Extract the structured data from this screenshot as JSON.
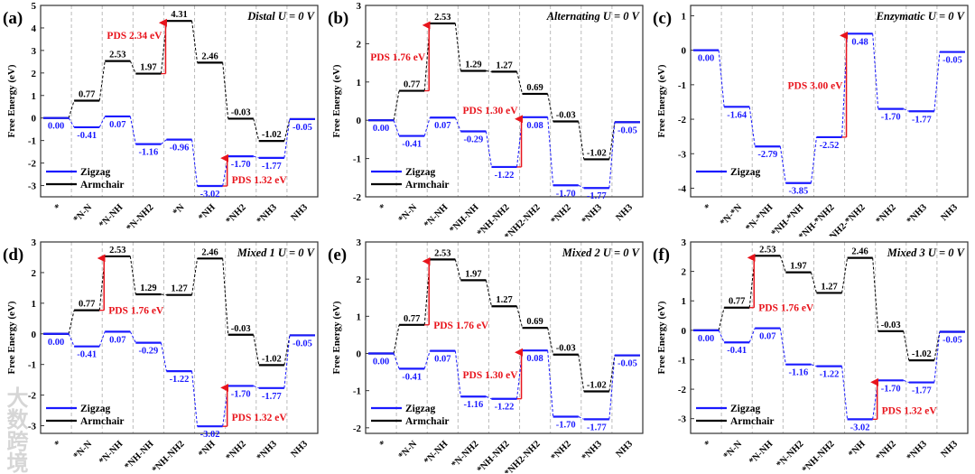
{
  "colors": {
    "zigzag": "#1a1aff",
    "armchair": "#000000",
    "pds": "#e8141c",
    "grid": "#bbbbbb"
  },
  "watermark": "大数跨境",
  "chart_data": [
    {
      "type": "line",
      "panel": "(a)",
      "title": "Distal  U = 0 V",
      "ylabel": "Free Energy (eV)",
      "ylim": [
        -3.5,
        5
      ],
      "yticks": [
        -3,
        -2,
        -1,
        0,
        1,
        2,
        3,
        4,
        5
      ],
      "categories": [
        "*",
        "*N-N",
        "*N-NH",
        "*N-NH2",
        "*N",
        "*NH",
        "*NH2",
        "*NH3",
        "NH3"
      ],
      "series": [
        {
          "name": "Zigzag",
          "values": [
            0.0,
            -0.41,
            0.07,
            -1.16,
            -0.96,
            -3.02,
            -1.7,
            -1.77,
            -0.05
          ],
          "labels": [
            "0.00",
            "-0.41",
            "0.07",
            "-1.16",
            "-0.96",
            "-3.02",
            "-1.70",
            "-1.77",
            "-0.05"
          ]
        },
        {
          "name": "Armchair",
          "values": [
            0.0,
            0.77,
            2.53,
            1.97,
            4.31,
            2.46,
            -0.03,
            -1.02,
            -0.05
          ],
          "labels": [
            null,
            "0.77",
            "2.53",
            "1.97",
            "4.31",
            "2.46",
            "-0.03",
            "-1.02",
            null
          ]
        }
      ],
      "pds": [
        {
          "series": "Armchair",
          "to_step": 4,
          "label": "PDS 2.34 eV"
        },
        {
          "series": "Zigzag",
          "to_step": 6,
          "label": "PDS 1.32 eV"
        }
      ]
    },
    {
      "type": "line",
      "panel": "(b)",
      "title": "Alternating  U = 0 V",
      "ylabel": "Free Energy (eV)",
      "ylim": [
        -2,
        3
      ],
      "yticks": [
        -2,
        -1,
        0,
        1,
        2,
        3
      ],
      "categories": [
        "*",
        "*N-N",
        "*N-NH",
        "*NH-NH",
        "*NH-NH2",
        "*NH2-NH2",
        "*NH2",
        "*NH3",
        "NH3"
      ],
      "series": [
        {
          "name": "Zigzag",
          "values": [
            0.0,
            -0.41,
            0.07,
            -0.29,
            -1.22,
            0.08,
            -1.7,
            -1.77,
            -0.05
          ],
          "labels": [
            "0.00",
            "-0.41",
            "0.07",
            "-0.29",
            "-1.22",
            "0.08",
            "-1.70",
            "-1.77",
            "-0.05"
          ]
        },
        {
          "name": "Armchair",
          "values": [
            0.0,
            0.77,
            2.53,
            1.29,
            1.27,
            0.69,
            -0.03,
            -1.02,
            -0.05
          ],
          "labels": [
            null,
            "0.77",
            "2.53",
            "1.29",
            "1.27",
            "0.69",
            "-0.03",
            "-1.02",
            null
          ]
        }
      ],
      "pds": [
        {
          "series": "Armchair",
          "to_step": 2,
          "label": "PDS 1.76 eV"
        },
        {
          "series": "Zigzag",
          "to_step": 5,
          "label": "PDS 1.30 eV"
        }
      ]
    },
    {
      "type": "line",
      "panel": "(c)",
      "title": "Enzymatic  U = 0 V",
      "ylabel": "Free Energy (eV)",
      "ylim": [
        -4.25,
        1.3
      ],
      "yticks": [
        -4,
        -3,
        -2,
        -1,
        0,
        1
      ],
      "categories": [
        "*",
        "*N-*N",
        "*N-*NH",
        "*NH-*NH",
        "*NH-*NH2",
        "*NH2-*NH2",
        "*NH2",
        "*NH3",
        "NH3"
      ],
      "series": [
        {
          "name": "Zigzag",
          "values": [
            0.0,
            -1.64,
            -2.79,
            -3.85,
            -2.52,
            0.48,
            -1.7,
            -1.77,
            -0.05
          ],
          "labels": [
            "0.00",
            "-1.64",
            "-2.79",
            "-3.85",
            "-2.52",
            "0.48",
            "-1.70",
            "-1.77",
            "-0.05"
          ]
        }
      ],
      "pds": [
        {
          "series": "Zigzag",
          "to_step": 5,
          "label": "PDS 3.00  eV"
        }
      ]
    },
    {
      "type": "line",
      "panel": "(d)",
      "title": "Mixed 1  U = 0 V",
      "ylabel": "Free Energy (eV)",
      "ylim": [
        -3.25,
        3
      ],
      "yticks": [
        -3,
        -2,
        -1,
        0,
        1,
        2,
        3
      ],
      "categories": [
        "*",
        "*N-N",
        "*N-NH",
        "*NH-NH",
        "*NH-NH2",
        "*NH",
        "*NH2",
        "*NH3",
        "NH3"
      ],
      "series": [
        {
          "name": "Zigzag",
          "values": [
            0.0,
            -0.41,
            0.07,
            -0.29,
            -1.22,
            -3.02,
            -1.7,
            -1.77,
            -0.05
          ],
          "labels": [
            "0.00",
            "-0.41",
            "0.07",
            "-0.29",
            "-1.22",
            "-3.02",
            "-1.70",
            "-1.77",
            "-0.05"
          ]
        },
        {
          "name": "Armchair",
          "values": [
            0.0,
            0.77,
            2.53,
            1.29,
            1.27,
            2.46,
            -0.03,
            -1.02,
            -0.05
          ],
          "labels": [
            null,
            "0.77",
            "2.53",
            "1.29",
            "1.27",
            "2.46",
            "-0.03",
            "-1.02",
            null
          ]
        }
      ],
      "pds": [
        {
          "series": "Armchair",
          "to_step": 2,
          "label": "PDS 1.76 eV"
        },
        {
          "series": "Zigzag",
          "to_step": 6,
          "label": "PDS 1.32 eV"
        }
      ]
    },
    {
      "type": "line",
      "panel": "(e)",
      "title": "Mixed 2  U = 0 V",
      "ylabel": "Free Energy (eV)",
      "ylim": [
        -2.15,
        3
      ],
      "yticks": [
        -2,
        -1,
        0,
        1,
        2,
        3
      ],
      "categories": [
        "*",
        "*N-N",
        "*N-NH",
        "*N-NH2",
        "*NH-NH2",
        "*NH2-NH2",
        "*NH2",
        "*NH3",
        "NH3"
      ],
      "series": [
        {
          "name": "Zigzag",
          "values": [
            0.0,
            -0.41,
            0.07,
            -1.16,
            -1.22,
            0.08,
            -1.7,
            -1.77,
            -0.05
          ],
          "labels": [
            "0.00",
            "-0.41",
            "0.07",
            "-1.16",
            "-1.22",
            "0.08",
            "-1.70",
            "-1.77",
            "-0.05"
          ]
        },
        {
          "name": "Armchair",
          "values": [
            0.0,
            0.77,
            2.53,
            1.97,
            1.27,
            0.69,
            -0.03,
            -1.02,
            -0.05
          ],
          "labels": [
            null,
            "0.77",
            "2.53",
            "1.97",
            "1.27",
            "0.69",
            "-0.03",
            "-1.02",
            null
          ]
        }
      ],
      "pds": [
        {
          "series": "Armchair",
          "to_step": 2,
          "label": "PDS 1.76 eV"
        },
        {
          "series": "Zigzag",
          "to_step": 5,
          "label": "PDS 1.30 eV"
        }
      ]
    },
    {
      "type": "line",
      "panel": "(f)",
      "title": "Mixed 3  U = 0 V",
      "ylabel": "Free Energy (eV)",
      "ylim": [
        -3.5,
        3
      ],
      "yticks": [
        -3,
        -2,
        -1,
        0,
        1,
        2,
        3
      ],
      "categories": [
        "*",
        "*N-N",
        "*N-NH",
        "*N-NH2",
        "*NH-NH2",
        "*NH",
        "*NH2",
        "*NH3",
        "NH3"
      ],
      "series": [
        {
          "name": "Zigzag",
          "values": [
            0.0,
            -0.41,
            0.07,
            -1.16,
            -1.22,
            -3.02,
            -1.7,
            -1.77,
            -0.05
          ],
          "labels": [
            "0.00",
            "-0.41",
            "0.07",
            "-1.16",
            "-1.22",
            "-3.02",
            "-1.70",
            "-1.77",
            "-0.05"
          ]
        },
        {
          "name": "Armchair",
          "values": [
            0.0,
            0.77,
            2.53,
            1.97,
            1.27,
            2.46,
            -0.03,
            -1.02,
            -0.05
          ],
          "labels": [
            null,
            "0.77",
            "2.53",
            "1.97",
            "1.27",
            "2.46",
            "-0.03",
            "-1.02",
            null
          ]
        }
      ],
      "pds": [
        {
          "series": "Armchair",
          "to_step": 2,
          "label": "PDS 1.76 eV"
        },
        {
          "series": "Zigzag",
          "to_step": 6,
          "label": "PDS 1.32 eV"
        }
      ]
    }
  ]
}
